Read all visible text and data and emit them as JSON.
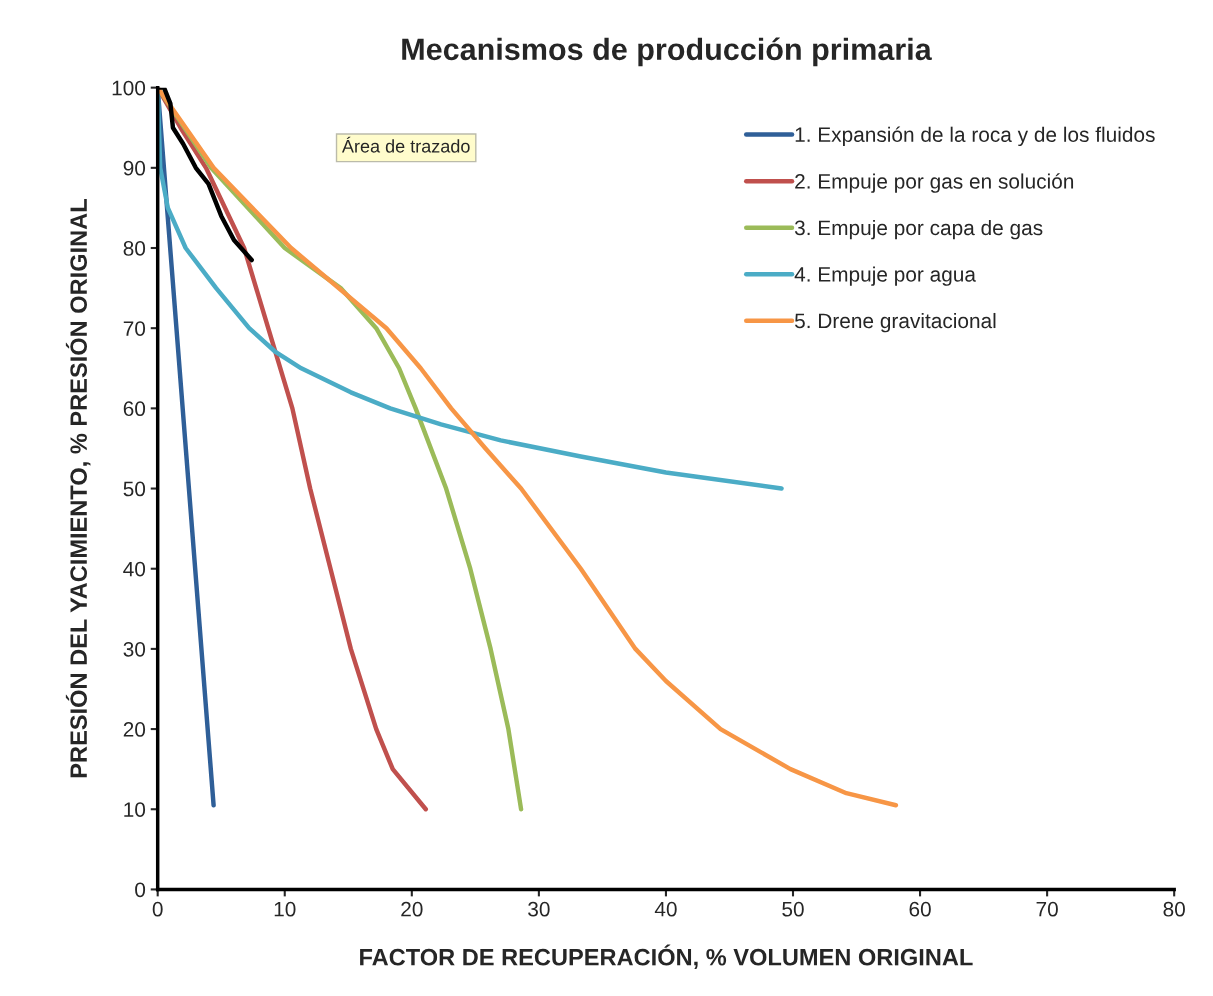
{
  "chart_data": {
    "type": "line",
    "title": "Mecanismos de producción primaria",
    "xlabel": "FACTOR DE RECUPERACIÓN, % VOLUMEN ORIGINAL",
    "ylabel": "PRESIÓN DEL YACIMIENTO, % PRESIÓN ORIGINAL",
    "annotations": [
      "Área de trazado"
    ],
    "xlim": [
      0,
      80
    ],
    "ylim": [
      0,
      100
    ],
    "xticks": [
      0,
      10,
      20,
      30,
      40,
      50,
      60,
      70,
      80
    ],
    "yticks": [
      0,
      10,
      20,
      30,
      40,
      50,
      60,
      70,
      80,
      90,
      100
    ],
    "grid": false,
    "legend": "top right",
    "marker": "none",
    "line_style": "solid",
    "series": [
      {
        "name": "1. Expansión de la roca y de los fluidos",
        "color": "#2f5f98",
        "x": [
          0,
          4.4
        ],
        "values": [
          100,
          10.5
        ]
      },
      {
        "name": "2. Empuje por gas en solución",
        "color": "#c0504d",
        "x": [
          0,
          1.8,
          3.8,
          6.8,
          8.7,
          10.6,
          12.0,
          13.6,
          15.2,
          17.2,
          18.5,
          21.1
        ],
        "values": [
          100,
          95,
          90,
          80,
          70,
          60,
          50,
          40,
          30,
          20,
          15,
          10
        ]
      },
      {
        "name": "3. Empuje por capa de gas",
        "color": "#9bbb59",
        "x": [
          0,
          4.2,
          10.0,
          14.4,
          17.2,
          19.0,
          20.3,
          22.7,
          24.6,
          26.2,
          27.6,
          28.6
        ],
        "values": [
          100,
          90,
          80,
          75,
          70,
          65,
          60,
          50,
          40,
          30,
          20,
          10
        ]
      },
      {
        "name": "4. Empuje por agua",
        "color": "#4bacc6",
        "x": [
          0,
          0.2,
          0.8,
          2.2,
          4.6,
          7.2,
          9.3,
          11.3,
          15.2,
          18.3,
          22.3,
          27.0,
          33.3,
          40.0,
          49.1
        ],
        "values": [
          100,
          90,
          85,
          80,
          75,
          70,
          67,
          65,
          62,
          60,
          58,
          56,
          54,
          52,
          50
        ]
      },
      {
        "name": "5. Drene gravitacional",
        "color": "#f79646",
        "x": [
          0,
          4.4,
          10.5,
          18.0,
          20.7,
          23.1,
          25.8,
          28.6,
          33.3,
          37.6,
          40.0,
          44.3,
          49.8,
          54.2,
          58.1
        ],
        "values": [
          100,
          90,
          80,
          70,
          65,
          60,
          55,
          50,
          40,
          30,
          26,
          20,
          15,
          12,
          10.5
        ]
      },
      {
        "color": "#000000",
        "x": [
          0,
          0.5,
          1.0,
          1.2,
          2.0,
          3.0,
          4.0,
          4.5,
          5.0,
          6.0,
          7.4
        ],
        "values": [
          100,
          100,
          98,
          95,
          93,
          90,
          88,
          86,
          84,
          81,
          78.5
        ]
      }
    ]
  }
}
